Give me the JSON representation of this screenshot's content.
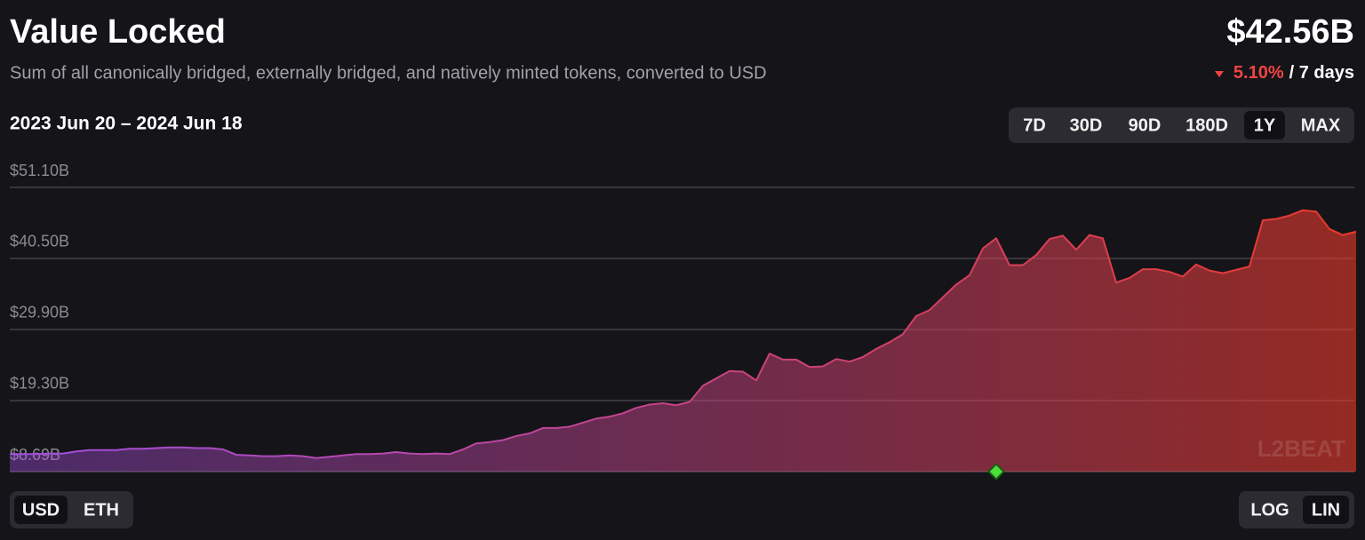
{
  "header": {
    "title": "Value Locked",
    "description": "Sum of all canonically bridged, externally bridged, and natively minted tokens, converted to USD",
    "total": "$42.56B",
    "change": "5.10%",
    "change_period": "/ 7 days"
  },
  "chart_data": {
    "type": "area",
    "date_range": "2023 Jun 20 – 2024 Jun 18",
    "values": [
      11.3,
      11.3,
      11.3,
      11.4,
      11.4,
      11.7,
      11.9,
      11.9,
      11.9,
      12.1,
      12.1,
      12.2,
      12.3,
      12.3,
      12.2,
      12.2,
      12.0,
      11.2,
      11.1,
      11.0,
      11.0,
      11.1,
      11.0,
      10.7,
      10.9,
      11.1,
      11.3,
      11.3,
      11.4,
      11.6,
      11.4,
      11.3,
      11.4,
      11.3,
      12.0,
      12.9,
      13.1,
      13.4,
      14.0,
      14.4,
      15.2,
      15.2,
      15.4,
      16.0,
      16.6,
      16.9,
      17.4,
      18.2,
      18.7,
      18.9,
      18.6,
      19.1,
      21.5,
      22.6,
      23.7,
      23.6,
      22.3,
      26.3,
      25.4,
      25.4,
      24.3,
      24.4,
      25.5,
      25.1,
      25.8,
      27.0,
      28.0,
      29.2,
      31.9,
      32.8,
      34.7,
      36.6,
      38.0,
      42.0,
      43.5,
      39.5,
      39.5,
      41.0,
      43.4,
      43.9,
      41.8,
      44.0,
      43.5,
      36.9,
      37.6,
      38.9,
      38.9,
      38.5,
      37.8,
      39.6,
      38.7,
      38.3,
      38.8,
      39.3,
      46.2,
      46.4,
      46.9,
      47.7,
      47.5,
      44.9,
      44.0,
      44.5
    ],
    "colors": [
      "#a04ee0",
      "#ea3a2a"
    ],
    "ylim": [
      8.69,
      51.1
    ],
    "yticks": [
      {
        "value": 8.69,
        "label": "$8.69B"
      },
      {
        "value": 19.3,
        "label": "$19.30B"
      },
      {
        "value": 29.9,
        "label": "$29.90B"
      },
      {
        "value": 40.5,
        "label": "$40.50B"
      },
      {
        "value": 51.1,
        "label": "$51.10B"
      }
    ],
    "grid": true,
    "watermark": "L2BEAT"
  },
  "controls": {
    "ranges": [
      "7D",
      "30D",
      "90D",
      "180D",
      "1Y",
      "MAX"
    ],
    "selected_range": 4,
    "currencies": [
      "USD",
      "ETH"
    ],
    "selected_currency": 0,
    "scales": [
      "LOG",
      "LIN"
    ],
    "selected_scale": 1
  }
}
